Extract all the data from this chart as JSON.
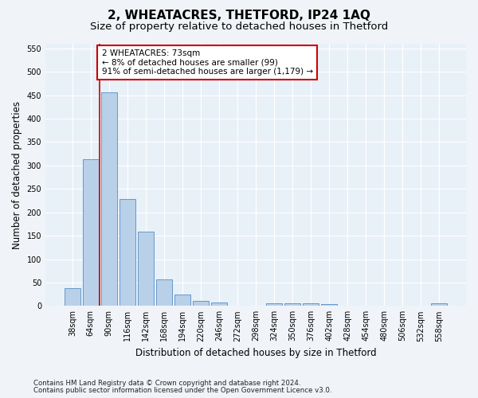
{
  "title1": "2, WHEATACRES, THETFORD, IP24 1AQ",
  "title2": "Size of property relative to detached houses in Thetford",
  "xlabel": "Distribution of detached houses by size in Thetford",
  "ylabel": "Number of detached properties",
  "footnote1": "Contains HM Land Registry data © Crown copyright and database right 2024.",
  "footnote2": "Contains public sector information licensed under the Open Government Licence v3.0.",
  "categories": [
    "38sqm",
    "64sqm",
    "90sqm",
    "116sqm",
    "142sqm",
    "168sqm",
    "194sqm",
    "220sqm",
    "246sqm",
    "272sqm",
    "298sqm",
    "324sqm",
    "350sqm",
    "376sqm",
    "402sqm",
    "428sqm",
    "454sqm",
    "480sqm",
    "506sqm",
    "532sqm",
    "558sqm"
  ],
  "values": [
    38,
    313,
    457,
    229,
    158,
    57,
    25,
    11,
    8,
    0,
    0,
    5,
    6,
    5,
    4,
    0,
    0,
    0,
    0,
    0,
    5
  ],
  "bar_color": "#b8d0e8",
  "bar_edge_color": "#6699cc",
  "annotation_text": "2 WHEATACRES: 73sqm\n← 8% of detached houses are smaller (99)\n91% of semi-detached houses are larger (1,179) →",
  "annotation_box_edge_color": "#cc0000",
  "annotation_box_face_color": "#ffffff",
  "property_line_x": 1.5,
  "ylim": [
    0,
    560
  ],
  "yticks": [
    0,
    50,
    100,
    150,
    200,
    250,
    300,
    350,
    400,
    450,
    500,
    550
  ],
  "bg_color": "#e8f0f8",
  "fig_bg_color": "#f0f4f8",
  "grid_color": "#ffffff",
  "title_fontsize": 11,
  "subtitle_fontsize": 9.5,
  "tick_fontsize": 7,
  "ylabel_fontsize": 8.5,
  "xlabel_fontsize": 8.5,
  "footnote_fontsize": 6.2
}
